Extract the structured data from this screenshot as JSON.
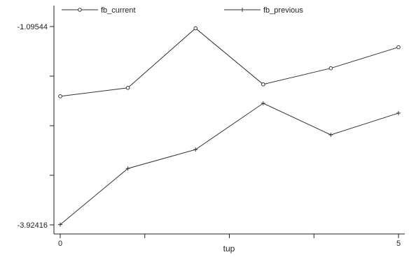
{
  "chart_data": {
    "type": "line",
    "x": [
      0,
      1,
      2,
      3,
      4,
      5
    ],
    "series": [
      {
        "name": "fb_current",
        "values": [
          -2.09,
          -1.97,
          -1.12,
          -1.92,
          -1.69,
          -1.39
        ],
        "marker": "circle"
      },
      {
        "name": "fb_previous",
        "values": [
          -3.92,
          -3.12,
          -2.85,
          -2.19,
          -2.64,
          -2.33
        ],
        "marker": "plus"
      }
    ],
    "x_tick_labels": [
      "0",
      "5"
    ],
    "y_tick_labels": [
      "-1.09544",
      "-3.92416"
    ],
    "xlabel": "tup",
    "ylabel": "",
    "title": "",
    "xlim": [
      0,
      5
    ],
    "ylim": [
      -3.92416,
      -1.09544
    ],
    "grid": false,
    "legend_position": "top",
    "line_color": "#333333"
  }
}
